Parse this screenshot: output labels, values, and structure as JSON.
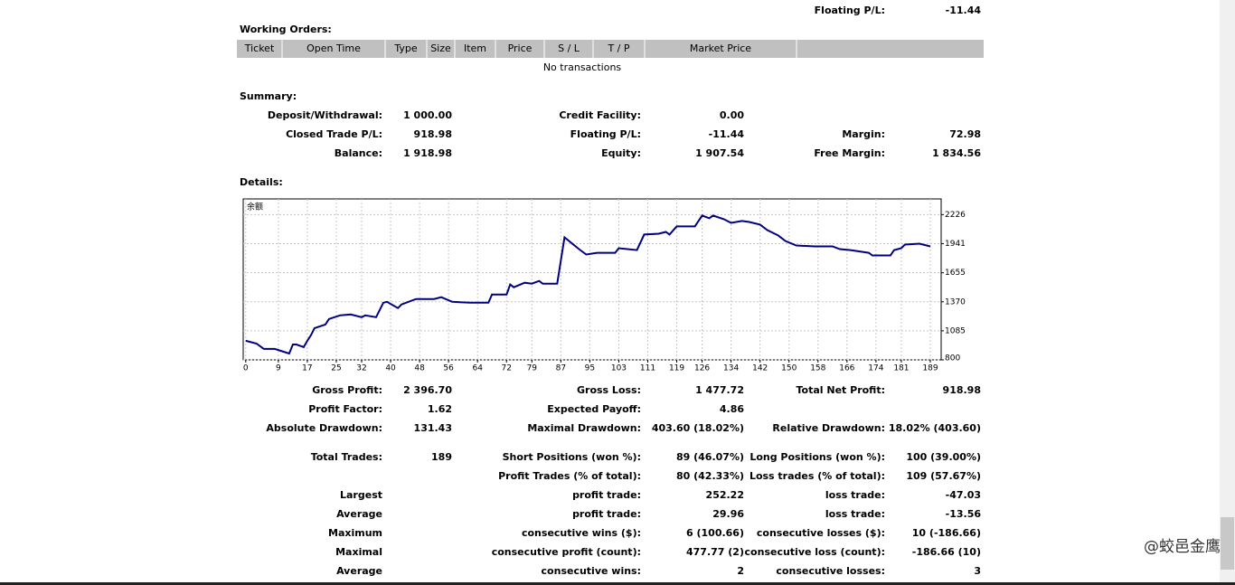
{
  "header": {
    "label": "Floating P/L:",
    "value": "-11.44"
  },
  "working_orders": {
    "title": "Working Orders:",
    "columns": [
      "Ticket",
      "Open Time",
      "Type",
      "Size",
      "Item",
      "Price",
      "S / L",
      "T / P",
      "Market Price"
    ],
    "empty_text": "No transactions"
  },
  "summary": {
    "title": "Summary:",
    "rows": [
      [
        "Deposit/Withdrawal:",
        "1 000.00",
        "Credit Facility:",
        "0.00",
        null,
        null
      ],
      [
        "Closed Trade P/L:",
        "918.98",
        "Floating P/L:",
        "-11.44",
        "Margin:",
        "72.98"
      ],
      [
        "Balance:",
        "1 918.98",
        "Equity:",
        "1 907.54",
        "Free Margin:",
        "1 834.56"
      ]
    ]
  },
  "details": {
    "title": "Details:",
    "chart": {
      "type": "line",
      "title": "余额",
      "color": "#000080",
      "grid": true,
      "x": [
        0,
        3,
        5,
        8,
        12,
        13,
        14,
        16,
        17,
        18,
        19,
        22,
        23,
        26,
        29,
        32,
        33,
        36,
        38,
        39,
        42,
        43,
        47,
        52,
        54,
        57,
        62,
        67,
        68,
        72,
        73,
        74,
        77,
        79,
        81,
        82,
        86,
        88,
        92,
        94,
        97,
        102,
        103,
        108,
        110,
        114,
        116,
        117,
        119,
        124,
        126,
        128,
        129,
        132,
        134,
        137,
        139,
        142,
        144,
        147,
        149,
        152,
        157,
        162,
        164,
        167,
        172,
        173,
        178,
        179,
        181,
        182,
        186,
        189
      ],
      "values": [
        987,
        960,
        907,
        907,
        862,
        951,
        951,
        925,
        987,
        1041,
        1112,
        1147,
        1201,
        1237,
        1246,
        1219,
        1237,
        1219,
        1361,
        1370,
        1308,
        1344,
        1397,
        1397,
        1415,
        1370,
        1361,
        1361,
        1442,
        1442,
        1540,
        1513,
        1557,
        1548,
        1575,
        1548,
        1548,
        2003,
        1887,
        1834,
        1851,
        1851,
        1896,
        1878,
        2030,
        2038,
        2056,
        2030,
        2110,
        2110,
        2217,
        2190,
        2217,
        2181,
        2145,
        2163,
        2154,
        2128,
        2074,
        2021,
        1967,
        1923,
        1914,
        1914,
        1887,
        1878,
        1851,
        1825,
        1825,
        1878,
        1896,
        1932,
        1941,
        1914
      ],
      "xlim": [
        -0.7,
        192
      ],
      "ylim": [
        800,
        2380
      ],
      "xticks": [
        0,
        9,
        17,
        25,
        32,
        40,
        48,
        56,
        64,
        72,
        79,
        87,
        95,
        103,
        111,
        119,
        126,
        134,
        142,
        150,
        158,
        166,
        174,
        181,
        189
      ],
      "yticks": [
        800,
        1085,
        1370,
        1655,
        1941,
        2226
      ]
    },
    "stats": [
      [
        "Gross Profit:",
        "2 396.70",
        "Gross Loss:",
        "1 477.72",
        "Total Net Profit:",
        "918.98"
      ],
      [
        "Profit Factor:",
        "1.62",
        "Expected Payoff:",
        "4.86",
        null,
        null
      ],
      [
        "Absolute Drawdown:",
        "131.43",
        "Maximal Drawdown:",
        "403.60 (18.02%)",
        "Relative Drawdown:",
        "18.02% (403.60)"
      ],
      [
        "Total Trades:",
        "189",
        "Short Positions (won %):",
        "89 (46.07%)",
        "Long Positions (won %):",
        "100 (39.00%)"
      ],
      [
        null,
        null,
        "Profit Trades (% of total):",
        "80 (42.33%)",
        "Loss trades (% of total):",
        "109 (57.67%)"
      ],
      [
        "Largest",
        null,
        "profit trade:",
        "252.22",
        "loss trade:",
        "-47.03"
      ],
      [
        "Average",
        null,
        "profit trade:",
        "29.96",
        "loss trade:",
        "-13.56"
      ],
      [
        "Maximum",
        null,
        "consecutive wins ($):",
        "6 (100.66)",
        "consecutive losses ($):",
        "10 (-186.66)"
      ],
      [
        "Maximal",
        null,
        "consecutive profit (count):",
        "477.77 (2)",
        "consecutive loss (count):",
        "-186.66 (10)"
      ],
      [
        "Average",
        null,
        "consecutive wins:",
        "2",
        "consecutive losses:",
        "3"
      ]
    ]
  },
  "watermark": "@蛟邑金鹰"
}
